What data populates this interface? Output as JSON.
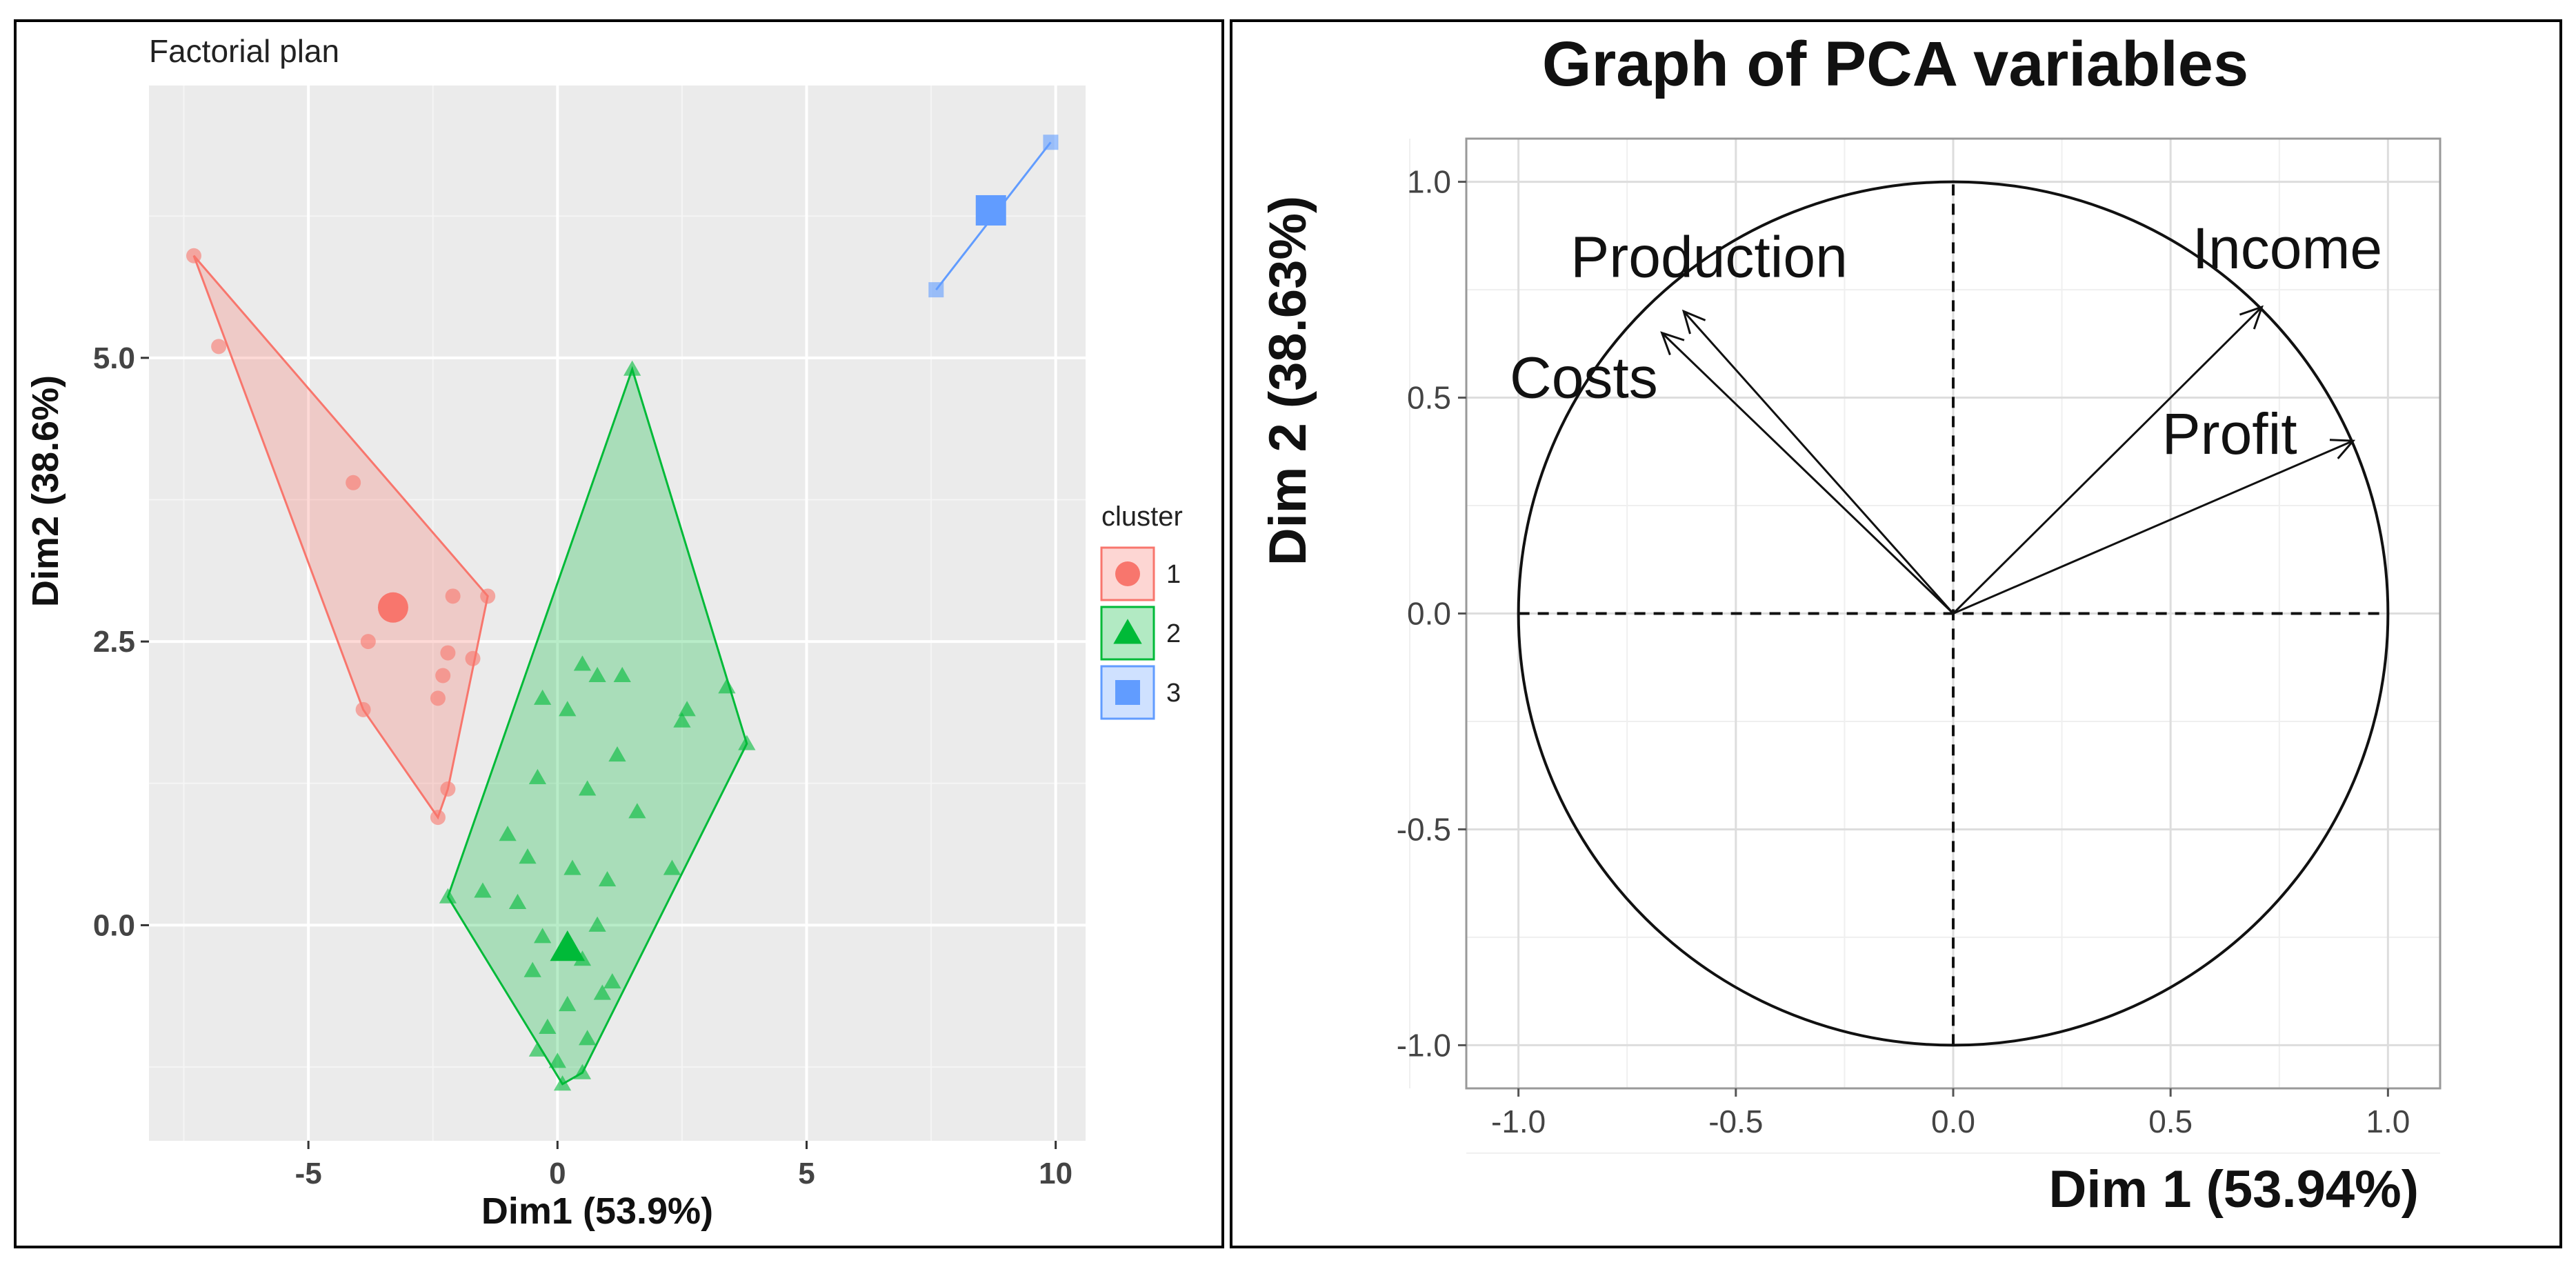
{
  "chart_data": [
    {
      "type": "scatter",
      "title": "Factorial plan",
      "xlabel": "Dim1 (53.9%)",
      "ylabel": "Dim2 (38.6%)",
      "xlim": [
        -8.2,
        10.6
      ],
      "ylim": [
        -1.9,
        7.4
      ],
      "xticks": [
        -5,
        0,
        5,
        10
      ],
      "xtick_labels": [
        "-5",
        "0",
        "5",
        "10"
      ],
      "yticks": [
        0,
        2.5,
        5
      ],
      "ytick_labels": [
        "0.0",
        "2.5",
        "5.0"
      ],
      "grid": true,
      "legend": {
        "title": "cluster",
        "position": "right",
        "entries": [
          "1",
          "2",
          "3"
        ]
      },
      "series": [
        {
          "name": "1",
          "color": "#F8766D",
          "marker": "circle",
          "hull": [
            [
              -7.3,
              5.9
            ],
            [
              -1.4,
              2.9
            ],
            [
              -2.2,
              1.2
            ],
            [
              -2.4,
              0.95
            ],
            [
              -3.9,
              1.9
            ]
          ],
          "center": [
            -3.3,
            2.8
          ],
          "points": [
            [
              -7.3,
              5.9
            ],
            [
              -6.8,
              5.1
            ],
            [
              -4.1,
              3.9
            ],
            [
              -3.8,
              2.5
            ],
            [
              -3.9,
              1.9
            ],
            [
              -2.1,
              2.9
            ],
            [
              -1.4,
              2.9
            ],
            [
              -2.2,
              2.4
            ],
            [
              -2.3,
              2.2
            ],
            [
              -2.4,
              2.0
            ],
            [
              -1.7,
              2.35
            ],
            [
              -2.2,
              1.2
            ],
            [
              -2.4,
              0.95
            ],
            [
              -3.3,
              2.8
            ]
          ]
        },
        {
          "name": "2",
          "color": "#00BA38",
          "marker": "triangle",
          "hull": [
            [
              1.5,
              4.9
            ],
            [
              3.8,
              1.6
            ],
            [
              0.5,
              -1.3
            ],
            [
              0.1,
              -1.4
            ],
            [
              -2.2,
              0.25
            ]
          ],
          "center": [
            0.2,
            -0.2
          ],
          "points": [
            [
              1.5,
              4.9
            ],
            [
              3.4,
              2.1
            ],
            [
              3.8,
              1.6
            ],
            [
              2.6,
              1.9
            ],
            [
              2.5,
              1.8
            ],
            [
              1.3,
              2.2
            ],
            [
              0.8,
              2.2
            ],
            [
              0.5,
              2.3
            ],
            [
              -0.3,
              2.0
            ],
            [
              0.2,
              1.9
            ],
            [
              1.2,
              1.5
            ],
            [
              0.6,
              1.2
            ],
            [
              1.6,
              1.0
            ],
            [
              -0.4,
              1.3
            ],
            [
              2.3,
              0.5
            ],
            [
              1.0,
              0.4
            ],
            [
              -1.0,
              0.8
            ],
            [
              -0.6,
              0.6
            ],
            [
              -1.5,
              0.3
            ],
            [
              -2.2,
              0.25
            ],
            [
              0.3,
              0.5
            ],
            [
              -0.8,
              0.2
            ],
            [
              0.8,
              0.0
            ],
            [
              -0.3,
              -0.1
            ],
            [
              0.5,
              -0.3
            ],
            [
              -0.5,
              -0.4
            ],
            [
              1.1,
              -0.5
            ],
            [
              0.2,
              -0.7
            ],
            [
              -0.2,
              -0.9
            ],
            [
              0.6,
              -1.0
            ],
            [
              0.0,
              -1.2
            ],
            [
              0.1,
              -1.4
            ],
            [
              0.5,
              -1.3
            ],
            [
              -0.4,
              -1.1
            ],
            [
              0.9,
              -0.6
            ],
            [
              0.2,
              -0.2
            ]
          ]
        },
        {
          "name": "3",
          "color": "#619CFF",
          "marker": "square",
          "hull": [
            [
              7.6,
              5.6
            ],
            [
              9.9,
              6.9
            ]
          ],
          "center": [
            8.7,
            6.3
          ],
          "points": [
            [
              7.6,
              5.6
            ],
            [
              9.9,
              6.9
            ],
            [
              8.7,
              6.3
            ]
          ]
        }
      ]
    },
    {
      "type": "line",
      "title": "Graph of PCA variables",
      "xlabel": "Dim 1 (53.94%)",
      "ylabel": "Dim 2 (38.63%)",
      "xlim": [
        -1.12,
        1.12
      ],
      "ylim": [
        -1.1,
        1.1
      ],
      "xticks": [
        -1.0,
        -0.5,
        0.0,
        0.5,
        1.0
      ],
      "xtick_labels": [
        "-1.0",
        "-0.5",
        "0.0",
        "0.5",
        "1.0"
      ],
      "yticks": [
        -1.0,
        -0.5,
        0.0,
        0.5,
        1.0
      ],
      "ytick_labels": [
        "-1.0",
        "-0.5",
        "0.0",
        "0.5",
        "1.0"
      ],
      "grid": true,
      "unit_circle": true,
      "series": [
        {
          "name": "Production",
          "x": -0.62,
          "y": 0.7,
          "label_x": -0.88,
          "label_y": 0.78
        },
        {
          "name": "Costs",
          "x": -0.67,
          "y": 0.65,
          "label_x": -1.02,
          "label_y": 0.5
        },
        {
          "name": "Income",
          "x": 0.71,
          "y": 0.71,
          "label_x": 0.55,
          "label_y": 0.8
        },
        {
          "name": "Profit",
          "x": 0.92,
          "y": 0.4,
          "label_x": 0.48,
          "label_y": 0.37
        }
      ]
    }
  ]
}
